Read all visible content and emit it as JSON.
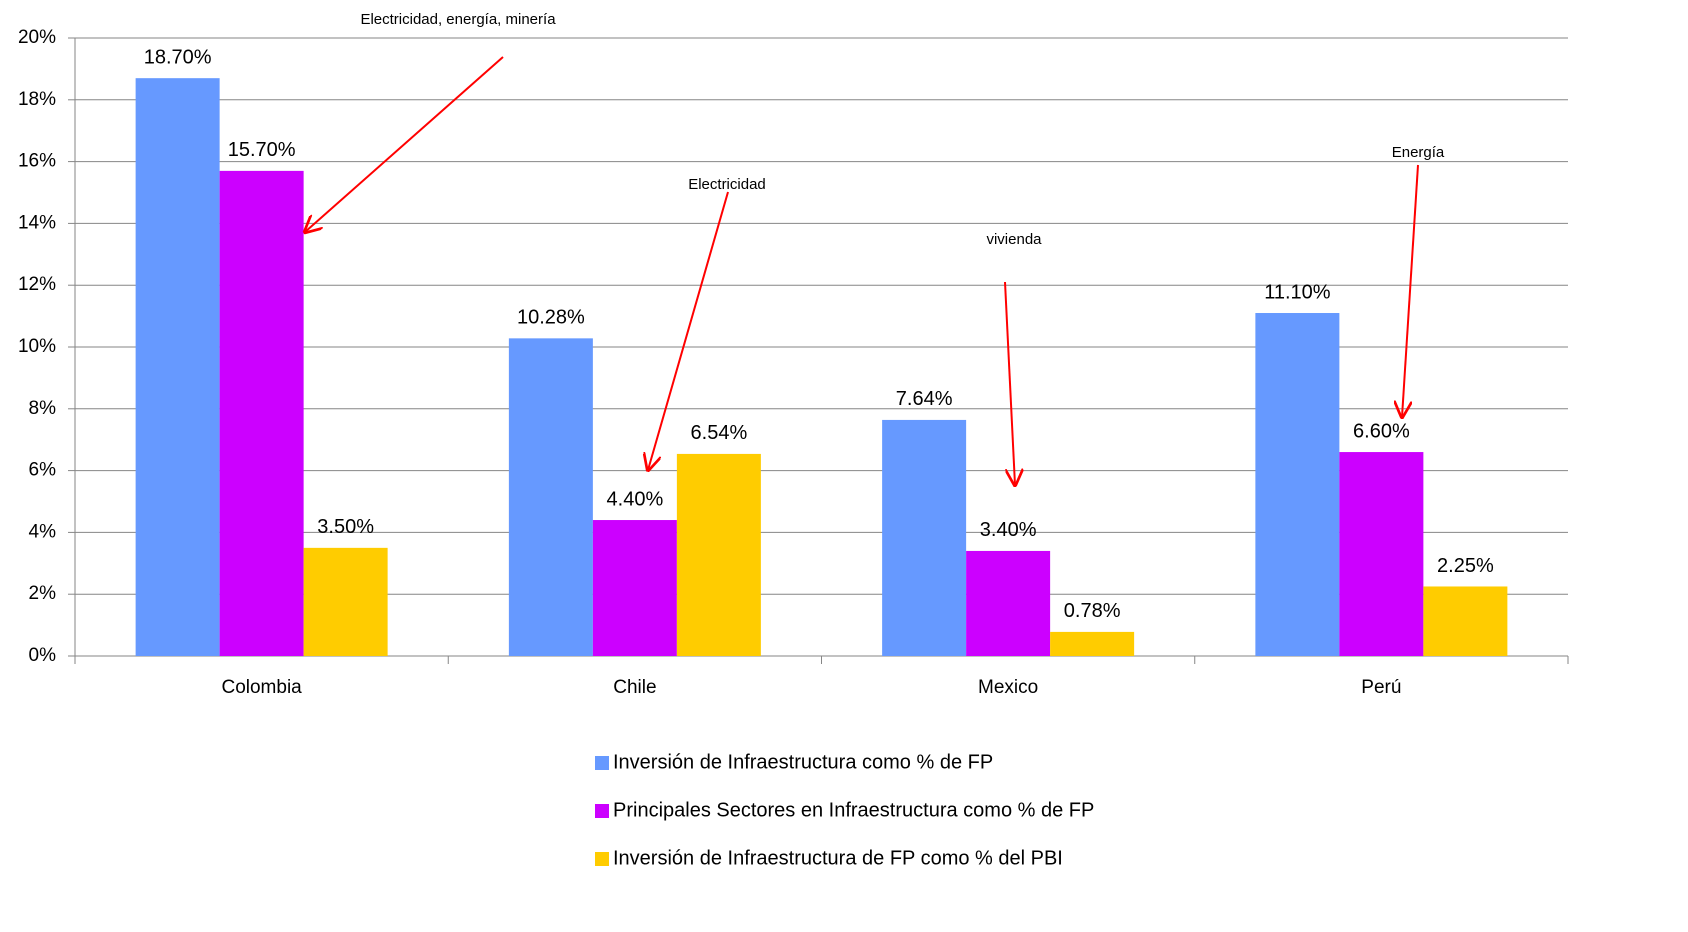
{
  "chart_data": {
    "type": "bar",
    "categories": [
      "Colombia",
      "Chile",
      "Mexico",
      "Perú"
    ],
    "series": [
      {
        "name": "Inversión de Infraestructura como % de FP",
        "color": "#6699ff",
        "values": [
          18.7,
          10.28,
          7.64,
          11.1
        ],
        "value_labels": [
          "18.70%",
          "10.28%",
          "7.64%",
          "11.10%"
        ]
      },
      {
        "name": "Principales Sectores en Infraestructura como % de FP",
        "color": "#cc00ff",
        "values": [
          15.7,
          4.4,
          3.4,
          6.6
        ],
        "value_labels": [
          "15.70%",
          "4.40%",
          "3.40%",
          "6.60%"
        ]
      },
      {
        "name": "Inversión de Infraestructura de FP como % del PBI",
        "color": "#ffcc00",
        "values": [
          3.5,
          6.54,
          0.78,
          2.25
        ],
        "value_labels": [
          "3.50%",
          "6.54%",
          "0.78%",
          "2.25%"
        ]
      }
    ],
    "ylim": [
      0,
      20
    ],
    "yticks": [
      {
        "value": 0,
        "label": "0%"
      },
      {
        "value": 2,
        "label": "2%"
      },
      {
        "value": 4,
        "label": "4%"
      },
      {
        "value": 6,
        "label": "6%"
      },
      {
        "value": 8,
        "label": "8%"
      },
      {
        "value": 10,
        "label": "10%"
      },
      {
        "value": 12,
        "label": "12%"
      },
      {
        "value": 14,
        "label": "14%"
      },
      {
        "value": 16,
        "label": "16%"
      },
      {
        "value": 18,
        "label": "18%"
      },
      {
        "value": 20,
        "label": "20%"
      }
    ],
    "grid": true,
    "legend": "bottom",
    "annotations": [
      "Electricidad, energía, minería",
      "Electricidad",
      "vivienda",
      "Energía"
    ]
  }
}
